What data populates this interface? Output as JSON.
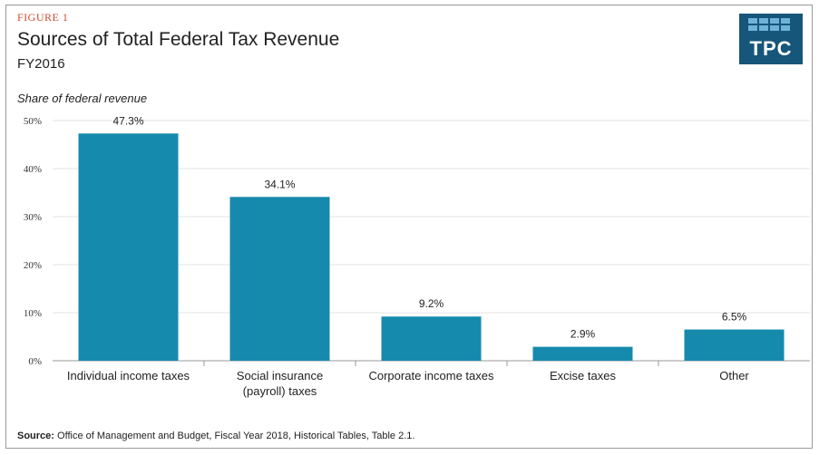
{
  "figure_label": "FIGURE 1",
  "title": "Sources of Total Federal Tax Revenue",
  "subtitle": "FY2016",
  "logo_text": "TPC",
  "source_label": "Source:",
  "source_text": "Office of Management and Budget, Fiscal Year 2018, Historical Tables, Table 2.1.",
  "colors": {
    "bar": "#168aad",
    "grid": "#e3e3e3",
    "logo": "#16567a",
    "figure_label": "#d14a2b"
  },
  "chart_data": {
    "type": "bar",
    "title": "Sources of Total Federal Tax Revenue",
    "subtitle": "FY2016",
    "ylabel": "Share of federal revenue",
    "xlabel": "",
    "categories": [
      [
        "Individual income taxes"
      ],
      [
        "Social insurance",
        "(payroll) taxes"
      ],
      [
        "Corporate income taxes"
      ],
      [
        "Excise taxes"
      ],
      [
        "Other"
      ]
    ],
    "values": [
      47.3,
      34.1,
      9.2,
      2.9,
      6.5
    ],
    "value_labels": [
      "47.3%",
      "34.1%",
      "9.2%",
      "2.9%",
      "6.5%"
    ],
    "ylim": [
      0,
      50
    ],
    "yticks": [
      0,
      10,
      20,
      30,
      40,
      50
    ],
    "ytick_labels": [
      "0%",
      "10%",
      "20%",
      "30%",
      "40%",
      "50%"
    ],
    "grid": true,
    "legend": "none"
  }
}
